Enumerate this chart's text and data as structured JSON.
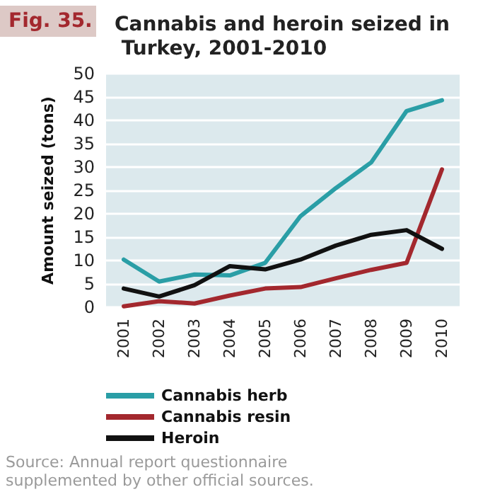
{
  "chart_data": {
    "type": "line",
    "title": "Cannabis and heroin seized in Turkey, 2001-2010",
    "ylabel": "Amount seized (tons)",
    "categories": [
      "2001",
      "2002",
      "2003",
      "2004",
      "2005",
      "2006",
      "2007",
      "2008",
      "2009",
      "2010"
    ],
    "series": [
      {
        "name": "Cannabis herb",
        "color": "#2a9ea6",
        "values": [
          10.2,
          5.5,
          7,
          6.8,
          9.5,
          19.5,
          25.5,
          31,
          42,
          44.3
        ]
      },
      {
        "name": "Cannabis resin",
        "color": "#a3282e",
        "values": [
          0.2,
          1.3,
          0.8,
          2.5,
          4,
          4.3,
          6.2,
          8,
          9.5,
          29.5
        ]
      },
      {
        "name": "Heroin",
        "color": "#111111",
        "values": [
          4,
          2.3,
          4.7,
          8.8,
          8.1,
          10.2,
          13.2,
          15.5,
          16.5,
          12.5
        ]
      }
    ],
    "ylim": [
      0,
      50
    ],
    "yticks": [
      0,
      5,
      10,
      15,
      20,
      25,
      30,
      35,
      40,
      45,
      50
    ],
    "grid": "y",
    "legend": "bottom left",
    "marker": "none",
    "line_style": "solid",
    "annotations": [
      "Fig. 35.",
      "Source: Annual report questionnaire supplemented by other official sources."
    ]
  }
}
